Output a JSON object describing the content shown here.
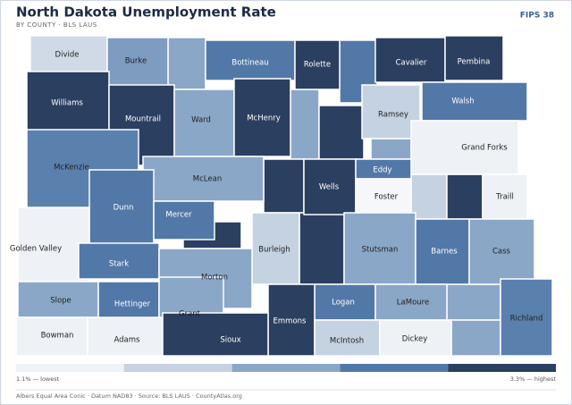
{
  "header": {
    "title": "North Dakota Unemployment Rate",
    "subtitle": "BY COUNTY · BLS LAUS",
    "badge": "FIPS 38"
  },
  "counties": [
    {
      "name": "Divide",
      "color": "#d0dae6"
    },
    {
      "name": "Burke",
      "color": "#7d9cc0"
    },
    {
      "name": "Bottineau",
      "color": "#5278a8"
    },
    {
      "name": "Rolette",
      "color": "#2b3f60"
    },
    {
      "name": "Cavalier",
      "color": "#2b3f60"
    },
    {
      "name": "Pembina",
      "color": "#2b3f60"
    },
    {
      "name": "Williams",
      "color": "#2b3f60"
    },
    {
      "name": "Mountrail",
      "color": "#2b3f60"
    },
    {
      "name": "Ward",
      "color": "#8aa7c8"
    },
    {
      "name": "McHenry",
      "color": "#2b3f60"
    },
    {
      "name": "Ramsey",
      "color": "#c5d2e2"
    },
    {
      "name": "Walsh",
      "color": "#5278a8"
    },
    {
      "name": "Grand Forks",
      "color": "#eef1f6"
    },
    {
      "name": "McKenzie",
      "color": "#5a80ae"
    },
    {
      "name": "McLean",
      "color": "#8aa7c8"
    },
    {
      "name": "Wells",
      "color": "#2b3f60"
    },
    {
      "name": "Eddy",
      "color": "#5278a8"
    },
    {
      "name": "Foster",
      "color": "#f5f7fa"
    },
    {
      "name": "Traill",
      "color": "#eef1f6"
    },
    {
      "name": "Dunn",
      "color": "#5278a8"
    },
    {
      "name": "Mercer",
      "color": "#5278a8"
    },
    {
      "name": "Golden Valley",
      "color": "#eef1f6"
    },
    {
      "name": "Stark",
      "color": "#5278a8"
    },
    {
      "name": "Burleigh",
      "color": "#c5d2e2"
    },
    {
      "name": "Stutsman",
      "color": "#8aa7c8"
    },
    {
      "name": "Barnes",
      "color": "#5278a8"
    },
    {
      "name": "Cass",
      "color": "#8aa7c8"
    },
    {
      "name": "Morton",
      "color": "#8aa7c8"
    },
    {
      "name": "Slope",
      "color": "#8aa7c8"
    },
    {
      "name": "Hettinger",
      "color": "#5278a8"
    },
    {
      "name": "Grant",
      "color": "#8aa7c8"
    },
    {
      "name": "Logan",
      "color": "#5278a8"
    },
    {
      "name": "LaMoure",
      "color": "#8aa7c8"
    },
    {
      "name": "Richland",
      "color": "#5a80ae"
    },
    {
      "name": "Emmons",
      "color": "#2b3f60"
    },
    {
      "name": "Bowman",
      "color": "#eef1f6"
    },
    {
      "name": "Adams",
      "color": "#eef1f6"
    },
    {
      "name": "Sioux",
      "color": "#2b3f60"
    },
    {
      "name": "McIntosh",
      "color": "#c5d2e2"
    },
    {
      "name": "Dickey",
      "color": "#eef1f6"
    }
  ],
  "legend": {
    "colors": [
      "#eef1f6",
      "#c5d2e2",
      "#8aa7c8",
      "#5278a8",
      "#2b3f60"
    ],
    "low_label": "1.1% — lowest",
    "high_label": "3.3% — highest"
  },
  "footer": "Albers Equal Area Conic · Datum NAD83 · Source: BLS LAUS · CountyAtlas.org"
}
